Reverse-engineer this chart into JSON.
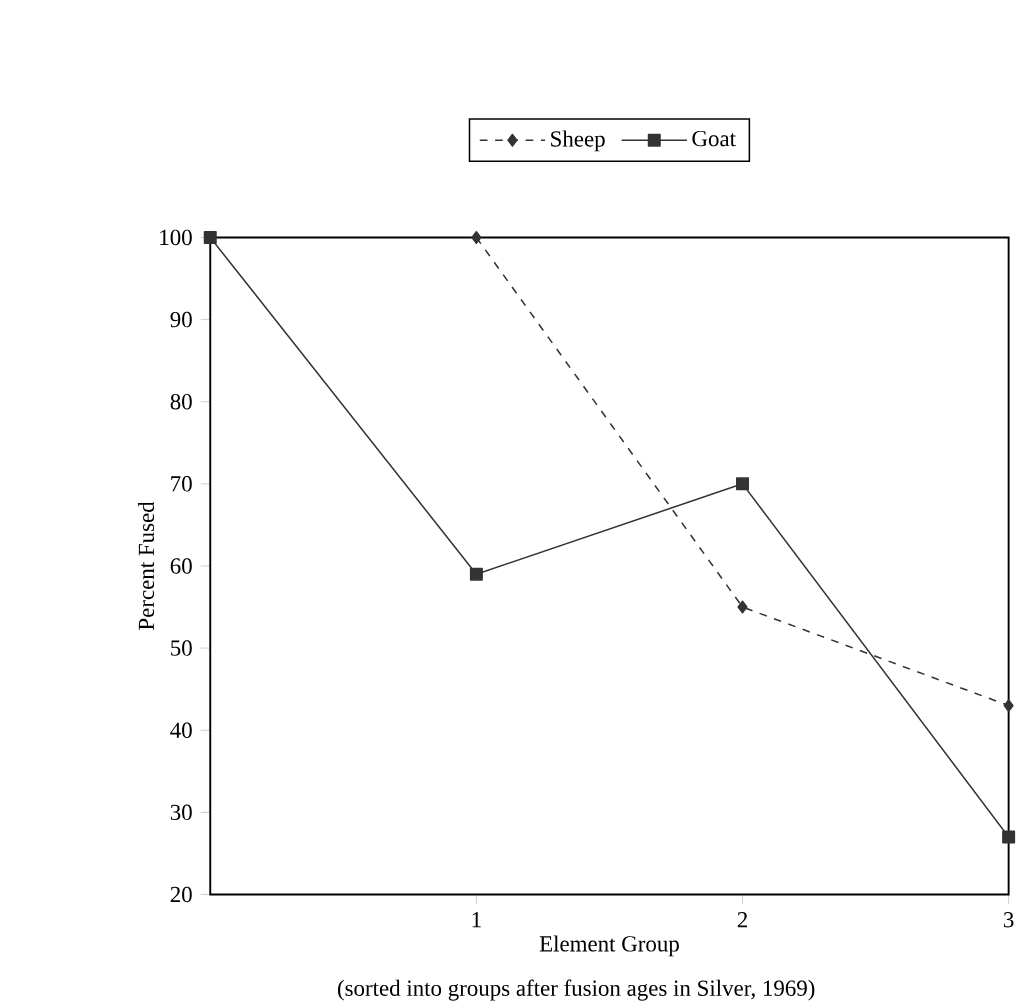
{
  "chart_data": {
    "type": "line",
    "xlabel": "Element Group",
    "ylabel": "Percent Fused",
    "annotations": [
      "(sorted into groups after fusion ages in Silver, 1969)"
    ],
    "x": [
      0,
      1,
      2,
      3
    ],
    "xlim": [
      0,
      3
    ],
    "xticks": [
      1,
      2,
      3
    ],
    "ylim": [
      20,
      100
    ],
    "yticks": [
      20,
      30,
      40,
      50,
      60,
      70,
      80,
      90,
      100
    ],
    "legend": "top",
    "series": [
      {
        "name": "Sheep",
        "color": "#333333",
        "marker": "diamond",
        "line_style": "dashed",
        "values": [
          null,
          100,
          55,
          43
        ]
      },
      {
        "name": "Goat",
        "color": "#333333",
        "marker": "square",
        "line_style": "solid",
        "values": [
          100,
          59,
          70,
          27
        ]
      }
    ]
  }
}
